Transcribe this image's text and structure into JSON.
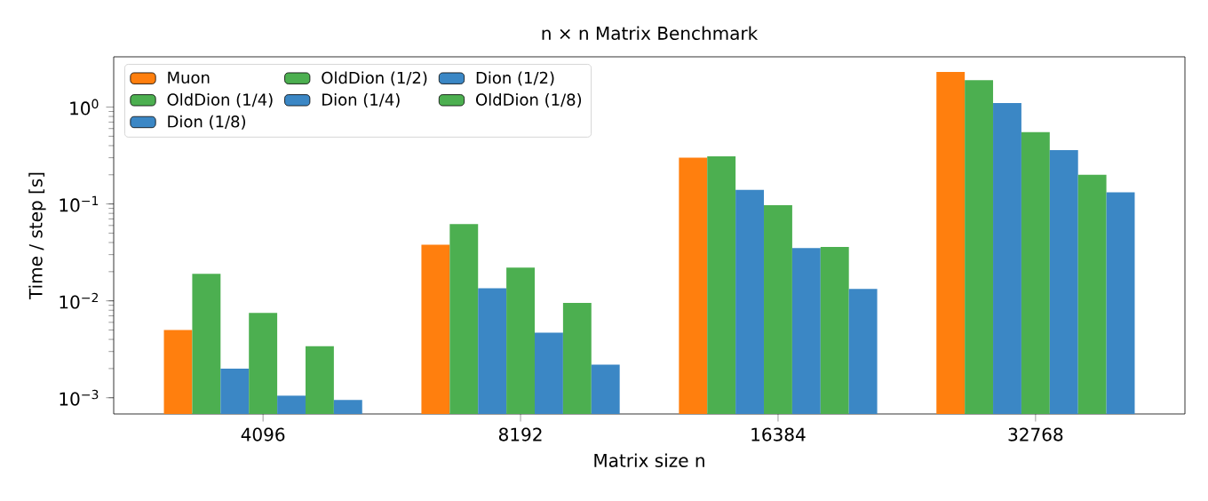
{
  "chart_data": {
    "type": "bar",
    "title": "n × n Matrix Benchmark",
    "xlabel": "Matrix size n",
    "ylabel": "Time / step [s]",
    "categories": [
      "4096",
      "8192",
      "16384",
      "32768"
    ],
    "log": "y",
    "ylim": [
      0.00068,
      3.3
    ],
    "yticks": [
      {
        "value": 0.001,
        "label": "10$^{−3}$"
      },
      {
        "value": 0.01,
        "label": "10$^{−2}$"
      },
      {
        "value": 0.1,
        "label": "10$^{−1}$"
      },
      {
        "value": 1,
        "label": "10$^{0}$"
      }
    ],
    "legend": "top left",
    "grid": false,
    "series": [
      {
        "name": "Muon",
        "color": "#ff7f0e",
        "values": [
          0.005,
          0.038,
          0.3,
          2.3
        ]
      },
      {
        "name": "OldDion (1/2)",
        "color": "#4caf50",
        "values": [
          0.019,
          0.062,
          0.31,
          1.9
        ]
      },
      {
        "name": "Dion (1/2)",
        "color": "#3b87c5",
        "values": [
          0.002,
          0.0135,
          0.14,
          1.1
        ]
      },
      {
        "name": "OldDion (1/4)",
        "color": "#4caf50",
        "values": [
          0.0075,
          0.022,
          0.097,
          0.55
        ]
      },
      {
        "name": "Dion (1/4)",
        "color": "#3b87c5",
        "values": [
          0.00105,
          0.0047,
          0.035,
          0.36
        ]
      },
      {
        "name": "OldDion (1/8)",
        "color": "#4caf50",
        "values": [
          0.0034,
          0.0095,
          0.036,
          0.2
        ]
      },
      {
        "name": "Dion (1/8)",
        "color": "#3b87c5",
        "values": [
          0.00095,
          0.0022,
          0.0133,
          0.132
        ]
      }
    ]
  }
}
